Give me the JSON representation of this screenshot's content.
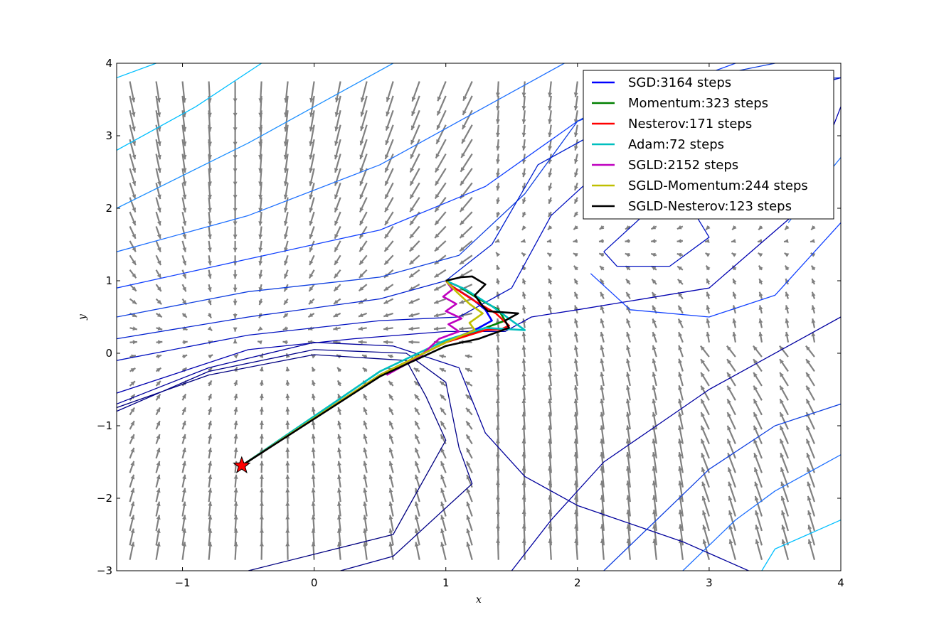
{
  "chart_data": {
    "type": "line",
    "title": "",
    "xlabel": "x",
    "ylabel": "y",
    "xlim": [
      -1.5,
      4
    ],
    "ylim": [
      -3,
      4
    ],
    "xticks": [
      -1,
      0,
      1,
      2,
      3,
      4
    ],
    "yticks": [
      -3,
      -2,
      -1,
      0,
      1,
      2,
      3,
      4
    ],
    "grid": false,
    "legend_position": "top-right",
    "background": "contour plot with gradient vector field (gray arrows)",
    "start_marker": {
      "x": -0.55,
      "y": -1.55,
      "shape": "star",
      "color": "#ff0000"
    },
    "series": [
      {
        "name": "SGD:3164 steps",
        "color": "#0000ff",
        "x": [
          -0.55,
          0.5,
          1.0,
          1.25,
          1.35,
          1.3,
          1.2,
          1.05,
          1.0
        ],
        "y": [
          -1.55,
          -0.3,
          0.15,
          0.35,
          0.45,
          0.6,
          0.75,
          0.92,
          1.0
        ]
      },
      {
        "name": "Momentum:323 steps",
        "color": "#008000",
        "x": [
          -0.55,
          0.5,
          1.0,
          1.3,
          1.45,
          1.4,
          1.25,
          1.1,
          1.0
        ],
        "y": [
          -1.55,
          -0.3,
          0.15,
          0.35,
          0.45,
          0.6,
          0.75,
          0.92,
          1.0
        ]
      },
      {
        "name": "Nesterov:171 steps",
        "color": "#ff0000",
        "x": [
          -0.55,
          0.5,
          1.0,
          1.3,
          1.42,
          1.48,
          1.38,
          1.22,
          1.05,
          1.0
        ],
        "y": [
          -1.55,
          -0.3,
          0.15,
          0.32,
          0.33,
          0.38,
          0.55,
          0.72,
          0.92,
          1.0
        ]
      },
      {
        "name": "Adam:72 steps",
        "color": "#00bfbf",
        "x": [
          -0.55,
          0.5,
          1.0,
          1.3,
          1.6,
          1.5,
          1.35,
          1.15,
          1.0
        ],
        "y": [
          -1.55,
          -0.25,
          0.18,
          0.35,
          0.32,
          0.45,
          0.65,
          0.88,
          1.0
        ]
      },
      {
        "name": "SGLD:2152 steps",
        "color": "#bf00bf",
        "x": [
          0.55,
          0.8,
          0.95,
          1.1,
          1.02,
          1.12,
          1.0,
          1.08,
          0.98,
          1.05,
          1.0
        ],
        "y": [
          -0.3,
          -0.05,
          0.2,
          0.3,
          0.4,
          0.48,
          0.58,
          0.68,
          0.78,
          0.88,
          1.0
        ]
      },
      {
        "name": "SGLD-Momentum:244 steps",
        "color": "#bfbf00",
        "x": [
          -0.55,
          0.5,
          1.0,
          1.22,
          1.18,
          1.28,
          1.18,
          1.08,
          1.0
        ],
        "y": [
          -1.55,
          -0.3,
          0.15,
          0.32,
          0.42,
          0.55,
          0.68,
          0.85,
          1.0
        ]
      },
      {
        "name": "SGLD-Nesterov:123 steps",
        "color": "#000000",
        "x": [
          -0.55,
          0.5,
          1.0,
          1.25,
          1.48,
          1.45,
          1.55,
          1.32,
          1.28,
          1.22,
          1.3,
          1.2,
          1.12,
          1.0
        ],
        "y": [
          -1.55,
          -0.32,
          0.1,
          0.2,
          0.35,
          0.45,
          0.55,
          0.58,
          0.65,
          0.8,
          0.95,
          1.06,
          1.05,
          1.0
        ]
      }
    ]
  }
}
